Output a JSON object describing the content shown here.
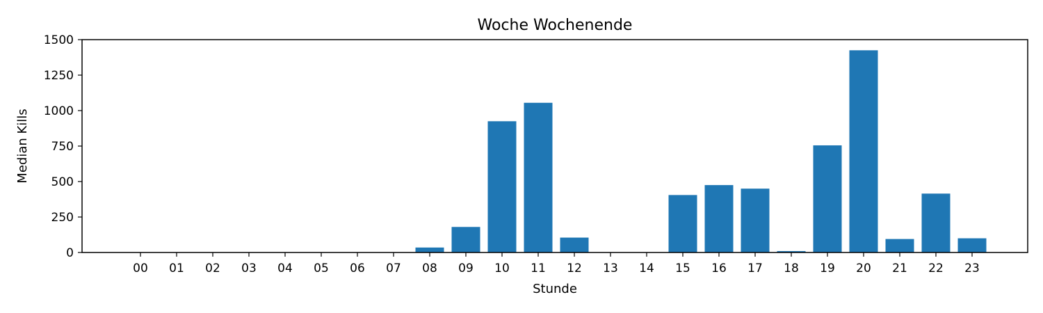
{
  "chart_data": {
    "type": "bar",
    "title": "Woche Wochenende",
    "xlabel": "Stunde",
    "ylabel": "Median Kills",
    "categories": [
      "00",
      "01",
      "02",
      "03",
      "04",
      "05",
      "06",
      "07",
      "08",
      "09",
      "10",
      "11",
      "12",
      "13",
      "14",
      "15",
      "16",
      "17",
      "18",
      "19",
      "20",
      "21",
      "22",
      "23"
    ],
    "values": [
      0,
      0,
      0,
      0,
      0,
      0,
      0,
      0,
      35,
      180,
      925,
      1055,
      105,
      0,
      0,
      405,
      475,
      450,
      10,
      755,
      1425,
      95,
      415,
      100
    ],
    "ylim": [
      0,
      1500
    ],
    "yticks": [
      0,
      250,
      500,
      750,
      1000,
      1250,
      1500
    ],
    "bar_color": "#1f77b4",
    "grid": false,
    "legend": "none"
  }
}
